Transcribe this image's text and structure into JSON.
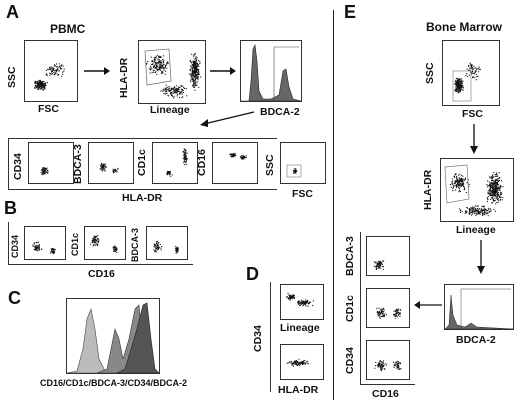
{
  "panels": {
    "A": {
      "letter": "A",
      "title": "PBMC",
      "ssc": "SSC",
      "fsc": "FSC",
      "hla_dr": "HLA-DR",
      "lineage": "Lineage",
      "bdca2": "BDCA-2",
      "row2_labels": [
        "CD34",
        "BDCA-3",
        "CD1c",
        "CD16"
      ],
      "row2_xlabel": "HLA-DR",
      "row2_ssc": "SSC",
      "row2_fsc": "FSC"
    },
    "B": {
      "letter": "B",
      "y_labels": [
        "CD34",
        "CD1c",
        "BDCA-3"
      ],
      "xlabel": "CD16"
    },
    "C": {
      "letter": "C",
      "xlabel": "CD16/CD1c/BDCA-3/CD34/BDCA-2"
    },
    "D": {
      "letter": "D",
      "ylabel": "CD34",
      "xlabels": [
        "Lineage",
        "HLA-DR"
      ]
    },
    "E": {
      "letter": "E",
      "title": "Bone Marrow",
      "ssc": "SSC",
      "fsc": "FSC",
      "hla_dr": "HLA-DR",
      "lineage": "Lineage",
      "y_labels": [
        "BDCA-3",
        "CD1c",
        "CD34"
      ],
      "xlabel": "CD16",
      "bdca2": "BDCA-2"
    }
  },
  "colors": {
    "ink": "#111111",
    "histDark": "#555555",
    "histLight": "#bbbbbb"
  }
}
